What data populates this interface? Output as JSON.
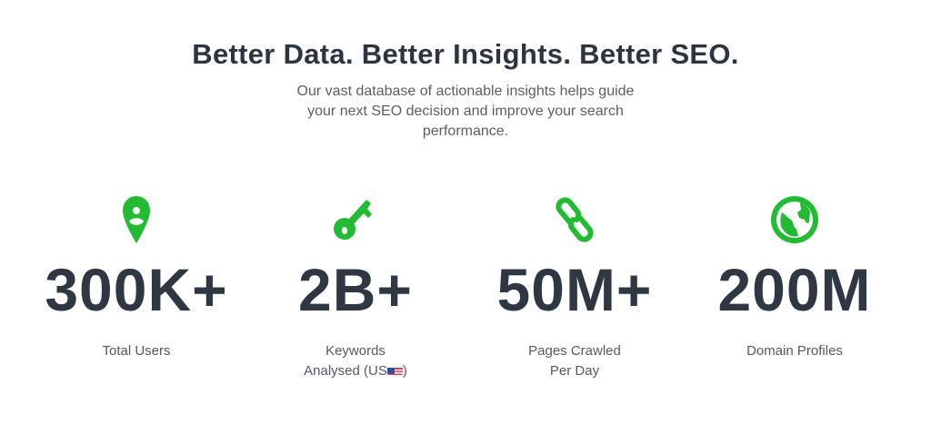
{
  "header": {
    "title": "Better Data. Better Insights. Better SEO.",
    "subtitle": "Our vast database of actionable insights helps guide your next SEO decision and improve your search performance."
  },
  "accent": "#22bb33",
  "stats": [
    {
      "icon": "user-pin-icon",
      "value": "300K+",
      "label": "Total Users"
    },
    {
      "icon": "key-icon",
      "value": "2B+",
      "label": "Keywords",
      "label2": "Analysed (US",
      "flag": "us-flag-icon",
      "label_end": ")"
    },
    {
      "icon": "link-icon",
      "value": "50M+",
      "label": "Pages Crawled",
      "label2": "Per Day"
    },
    {
      "icon": "globe-icon",
      "value": "200M",
      "label": "Domain Profiles"
    }
  ]
}
